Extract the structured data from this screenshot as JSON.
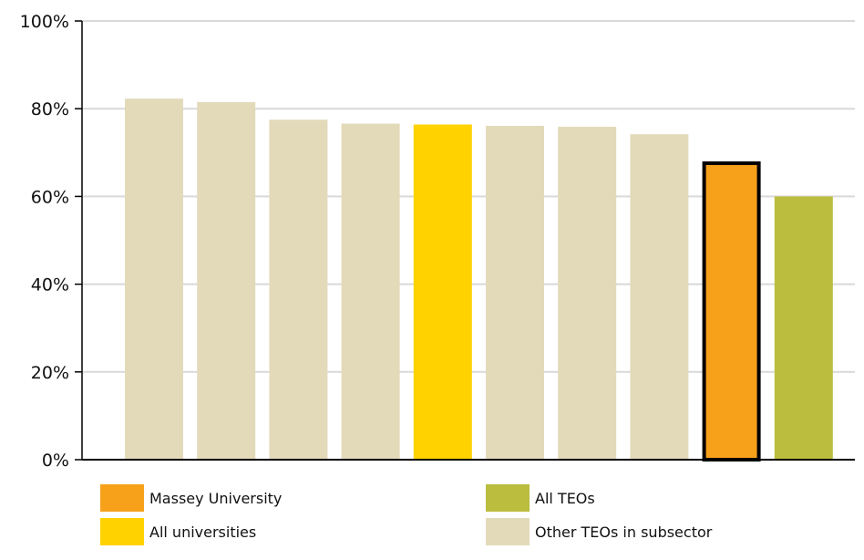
{
  "chart_data": {
    "type": "bar",
    "title": "",
    "xlabel": "",
    "ylabel": "",
    "ylim": [
      0,
      100
    ],
    "yticks": [
      {
        "value": 0,
        "label": "0%"
      },
      {
        "value": 20,
        "label": "20%"
      },
      {
        "value": 40,
        "label": "40%"
      },
      {
        "value": 60,
        "label": "60%"
      },
      {
        "value": 80,
        "label": "80%"
      },
      {
        "value": 100,
        "label": "100%"
      }
    ],
    "grid": true,
    "legend_position": "bottom",
    "bars": [
      {
        "value": 82.3,
        "group": "other"
      },
      {
        "value": 81.5,
        "group": "other"
      },
      {
        "value": 77.5,
        "group": "other"
      },
      {
        "value": 76.6,
        "group": "other"
      },
      {
        "value": 76.4,
        "group": "all_universities"
      },
      {
        "value": 76.1,
        "group": "other"
      },
      {
        "value": 75.9,
        "group": "other"
      },
      {
        "value": 74.2,
        "group": "other"
      },
      {
        "value": 68.0,
        "group": "massey",
        "highlight": true
      },
      {
        "value": 60.0,
        "group": "all_teos"
      }
    ],
    "legend": [
      {
        "group": "massey",
        "label": "Massey University",
        "color": "#F7A11B"
      },
      {
        "group": "all_teos",
        "label": "All TEOs",
        "color": "#BBBD3E"
      },
      {
        "group": "all_universities",
        "label": "All universities",
        "color": "#FFD200"
      },
      {
        "group": "other",
        "label": "Other TEOs in subsector",
        "color": "#E3DABA"
      }
    ],
    "colors": {
      "massey": "#F7A11B",
      "all_teos": "#BBBD3E",
      "all_universities": "#FFD200",
      "other": "#E3DABA",
      "highlight_outline": "#000000",
      "grid": "#D9D9D9",
      "axis": "#000000"
    }
  }
}
